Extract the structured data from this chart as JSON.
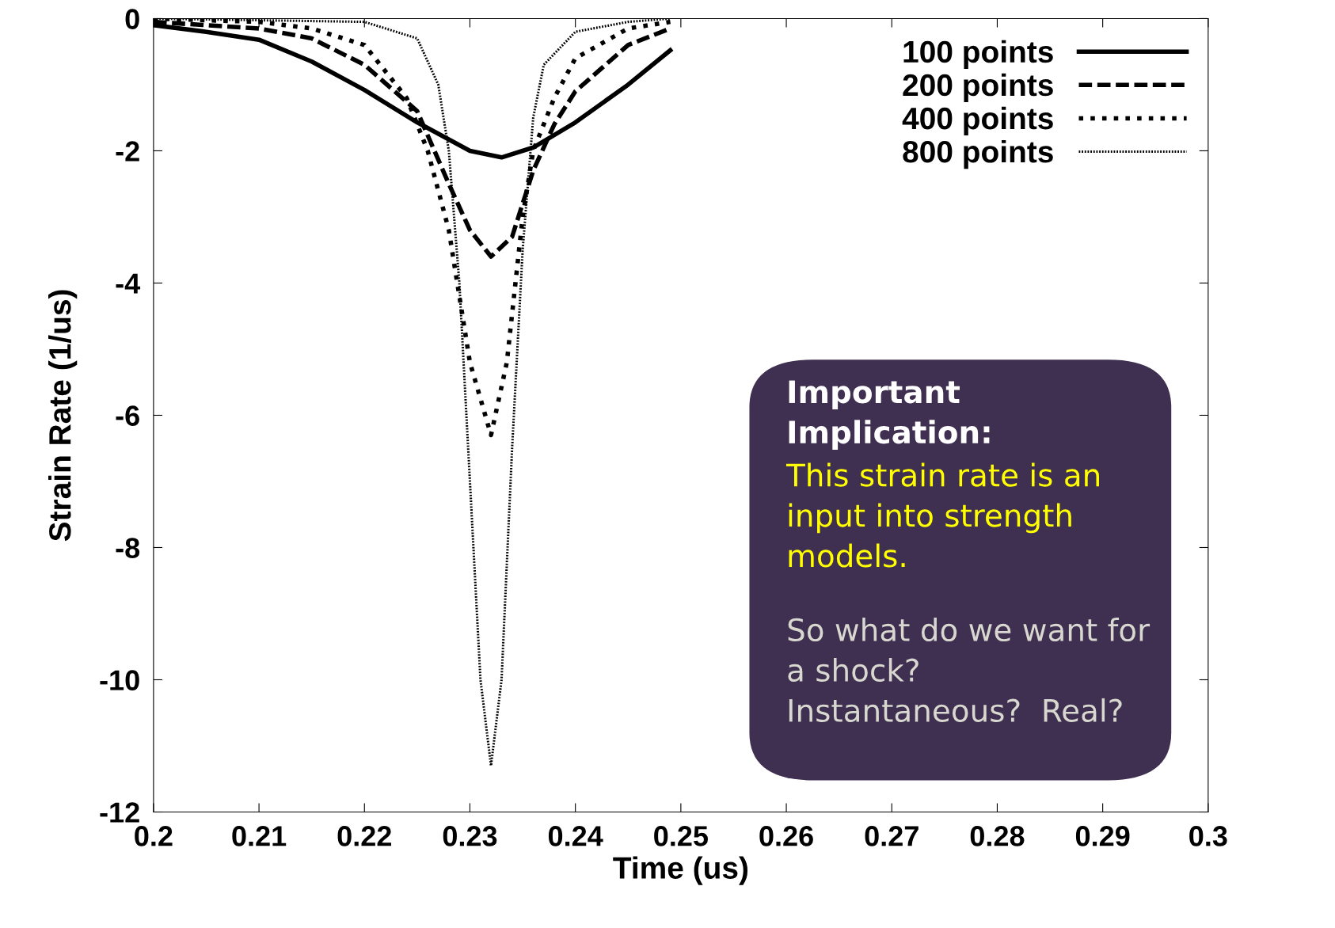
{
  "chart_data": {
    "type": "line",
    "xlabel": "Time (us)",
    "ylabel": "Strain Rate (1/us)",
    "xlim": [
      0.2,
      0.3
    ],
    "xticks": [
      0.2,
      0.21,
      0.22,
      0.23,
      0.24,
      0.25,
      0.26,
      0.27,
      0.28,
      0.29,
      0.3
    ],
    "ylim": [
      -12,
      0
    ],
    "yticks": [
      -12,
      -10,
      -8,
      -6,
      -4,
      -2,
      0
    ],
    "grid": false,
    "legend": "top right",
    "series": [
      {
        "name": "100 points",
        "color": "#000000",
        "line_style": "solid",
        "x": [
          0.2,
          0.205,
          0.21,
          0.215,
          0.22,
          0.225,
          0.23,
          0.233,
          0.236,
          0.24,
          0.245,
          0.249
        ],
        "values": [
          -0.1,
          -0.2,
          -0.32,
          -0.65,
          -1.08,
          -1.57,
          -2.0,
          -2.1,
          -1.95,
          -1.57,
          -1.0,
          -0.48
        ]
      },
      {
        "name": "200 points",
        "color": "#000000",
        "line_style": "dashed",
        "x": [
          0.2,
          0.21,
          0.215,
          0.22,
          0.225,
          0.228,
          0.23,
          0.232,
          0.234,
          0.236,
          0.238,
          0.24,
          0.245,
          0.249
        ],
        "values": [
          -0.05,
          -0.15,
          -0.3,
          -0.7,
          -1.4,
          -2.5,
          -3.2,
          -3.6,
          -3.3,
          -2.3,
          -1.6,
          -1.1,
          -0.4,
          -0.15
        ]
      },
      {
        "name": "400 points",
        "color": "#000000",
        "line_style": "dotted",
        "x": [
          0.2,
          0.21,
          0.215,
          0.22,
          0.224,
          0.226,
          0.228,
          0.23,
          0.232,
          0.2335,
          0.235,
          0.236,
          0.238,
          0.24,
          0.245,
          0.249
        ],
        "values": [
          0,
          -0.05,
          -0.15,
          -0.4,
          -1.2,
          -2.0,
          -3.2,
          -5.2,
          -6.3,
          -5.2,
          -3.0,
          -2.0,
          -1.2,
          -0.6,
          -0.15,
          -0.05
        ]
      },
      {
        "name": "800 points",
        "color": "#000000",
        "line_style": "dotted",
        "x": [
          0.2,
          0.22,
          0.225,
          0.227,
          0.228,
          0.229,
          0.23,
          0.231,
          0.232,
          0.233,
          0.234,
          0.235,
          0.236,
          0.237,
          0.24,
          0.245,
          0.249
        ],
        "values": [
          0,
          -0.05,
          -0.3,
          -1.0,
          -2.0,
          -4.0,
          -7.0,
          -10.0,
          -11.3,
          -10.0,
          -6.5,
          -3.5,
          -1.5,
          -0.7,
          -0.2,
          -0.05,
          0
        ]
      }
    ],
    "annotations": [
      "Important Implication:",
      "This strain rate is an input into strength models.",
      "So what do we want for a shock? Instantaneous?  Real?"
    ]
  }
}
